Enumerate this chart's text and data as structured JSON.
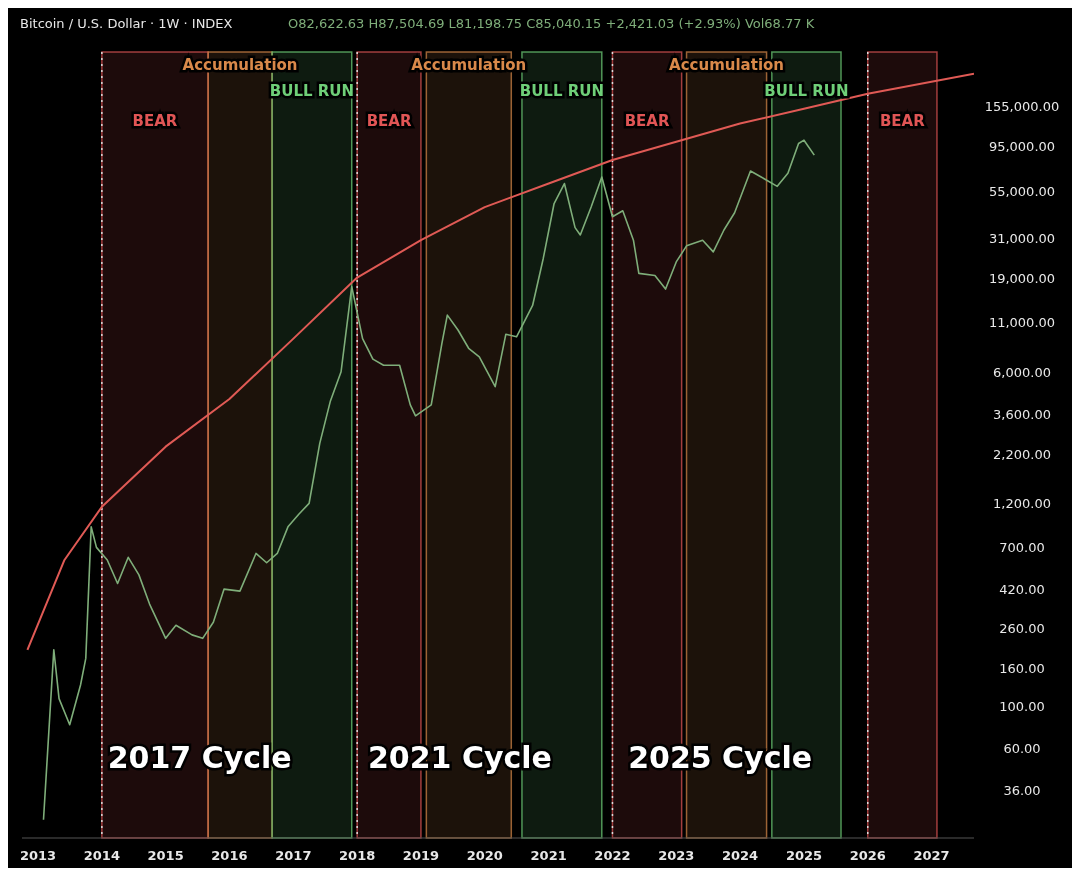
{
  "chart_data": {
    "type": "line",
    "title": "Bitcoin / U.S. Dollar · 1W · INDEX",
    "subtitle": "O82,622.63 H87,504.69 L81,198.75 C85,040.15 +2,421.03 (+2.93%) Vol68.77 K",
    "log": true,
    "xlim": [
      "2012-10",
      "2027-09"
    ],
    "xticks": [
      "2013",
      "2014",
      "2015",
      "2016",
      "2017",
      "2018",
      "2019",
      "2020",
      "2021",
      "2022",
      "2023",
      "2024",
      "2025",
      "2026",
      "2027"
    ],
    "ylim": [
      20,
      300000
    ],
    "yticks": [
      {
        "value": 36,
        "label": "36.00"
      },
      {
        "value": 60,
        "label": "60.00"
      },
      {
        "value": 100,
        "label": "100.00"
      },
      {
        "value": 160,
        "label": "160.00"
      },
      {
        "value": 260,
        "label": "260.00"
      },
      {
        "value": 420,
        "label": "420.00"
      },
      {
        "value": 700,
        "label": "700.00"
      },
      {
        "value": 1200,
        "label": "1,200.00"
      },
      {
        "value": 2200,
        "label": "2,200.00"
      },
      {
        "value": 3600,
        "label": "3,600.00"
      },
      {
        "value": 6000,
        "label": "6,000.00"
      },
      {
        "value": 11000,
        "label": "11,000.00"
      },
      {
        "value": 19000,
        "label": "19,000.00"
      },
      {
        "value": 31000,
        "label": "31,000.00"
      },
      {
        "value": 55000,
        "label": "55,000.00"
      },
      {
        "value": 95000,
        "label": "95,000.00"
      },
      {
        "value": 155000,
        "label": "155,000.00"
      }
    ],
    "series": [
      {
        "color": "#7fae7a",
        "x": [
          "2013-02",
          "2013-04",
          "2013-05",
          "2013-07",
          "2013-09",
          "2013-10",
          "2013-11",
          "2013-12",
          "2014-02",
          "2014-04",
          "2014-06",
          "2014-08",
          "2014-10",
          "2015-01",
          "2015-03",
          "2015-06",
          "2015-08",
          "2015-10",
          "2015-12",
          "2016-03",
          "2016-06",
          "2016-08",
          "2016-10",
          "2016-12",
          "2017-02",
          "2017-04",
          "2017-06",
          "2017-08",
          "2017-10",
          "2017-12",
          "2018-02",
          "2018-04",
          "2018-06",
          "2018-09",
          "2018-11",
          "2018-12",
          "2019-03",
          "2019-05",
          "2019-06",
          "2019-08",
          "2019-10",
          "2019-12",
          "2020-03",
          "2020-05",
          "2020-07",
          "2020-10",
          "2020-12",
          "2021-02",
          "2021-04",
          "2021-06",
          "2021-07",
          "2021-09",
          "2021-11",
          "2022-01",
          "2022-03",
          "2022-05",
          "2022-06",
          "2022-09",
          "2022-11",
          "2023-01",
          "2023-03",
          "2023-06",
          "2023-08",
          "2023-10",
          "2023-12",
          "2024-03",
          "2024-05",
          "2024-08",
          "2024-10",
          "2024-12",
          "2025-01",
          "2025-03"
        ],
        "values": [
          25,
          200,
          110,
          80,
          130,
          180,
          900,
          700,
          600,
          450,
          620,
          500,
          350,
          230,
          270,
          240,
          230,
          280,
          420,
          410,
          650,
          580,
          650,
          900,
          1050,
          1200,
          2500,
          4200,
          6000,
          17000,
          9000,
          7000,
          6500,
          6500,
          4000,
          3500,
          4000,
          8500,
          12000,
          10000,
          8000,
          7200,
          5000,
          9500,
          9200,
          13500,
          24000,
          47000,
          60000,
          35000,
          32000,
          45000,
          65000,
          40000,
          43000,
          30000,
          20000,
          19500,
          16500,
          23000,
          28000,
          30000,
          26000,
          34000,
          42000,
          70000,
          65000,
          58000,
          68000,
          98000,
          102000,
          85000
        ]
      },
      {
        "color": "#e05a55",
        "x": [
          "2012-11",
          "2013-06",
          "2014-01",
          "2015-01",
          "2016-01",
          "2017-01",
          "2018-01",
          "2019-01",
          "2020-01",
          "2021-01",
          "2022-01",
          "2023-01",
          "2024-01",
          "2025-01",
          "2026-01",
          "2027-09"
        ],
        "values": [
          200,
          600,
          1150,
          2400,
          4300,
          9000,
          19000,
          30000,
          45000,
          60000,
          80000,
          100000,
          125000,
          150000,
          180000,
          230000
        ]
      }
    ],
    "ref_lines": [
      {
        "axis": "x",
        "value": "2014-01",
        "color": "#dddddd",
        "line_style": "dotted"
      },
      {
        "axis": "x",
        "value": "2018-01",
        "color": "#dddddd",
        "line_style": "dotted"
      },
      {
        "axis": "x",
        "value": "2022-01",
        "color": "#dddddd",
        "line_style": "dotted"
      },
      {
        "axis": "x",
        "value": "2026-01",
        "color": "#dddddd",
        "line_style": "dotted"
      }
    ],
    "bands": [
      {
        "axis": "x",
        "from": "2014-01",
        "to": "2015-09",
        "label": "BEAR",
        "color": "#e05555"
      },
      {
        "axis": "x",
        "from": "2015-09",
        "to": "2016-09",
        "label": "Accumulation",
        "color": "#d9894a"
      },
      {
        "axis": "x",
        "from": "2016-09",
        "to": "2017-12",
        "label": "BULL RUN",
        "color": "#6fcf78"
      },
      {
        "axis": "x",
        "from": "2018-01",
        "to": "2019-01",
        "label": "BEAR",
        "color": "#e05555"
      },
      {
        "axis": "x",
        "from": "2019-02",
        "to": "2020-06",
        "label": "Accumulation",
        "color": "#d9894a"
      },
      {
        "axis": "x",
        "from": "2020-08",
        "to": "2021-11",
        "label": "BULL RUN",
        "color": "#6fcf78"
      },
      {
        "axis": "x",
        "from": "2022-01",
        "to": "2023-02",
        "label": "BEAR",
        "color": "#e05555"
      },
      {
        "axis": "x",
        "from": "2023-03",
        "to": "2024-06",
        "label": "Accumulation",
        "color": "#d9894a"
      },
      {
        "axis": "x",
        "from": "2024-07",
        "to": "2025-08",
        "label": "BULL RUN",
        "color": "#6fcf78"
      },
      {
        "axis": "x",
        "from": "2026-01",
        "to": "2027-02",
        "label": "BEAR",
        "color": "#e05555"
      }
    ],
    "annotations": [
      "2017 Cycle",
      "2021 Cycle",
      "2025 Cycle"
    ]
  }
}
